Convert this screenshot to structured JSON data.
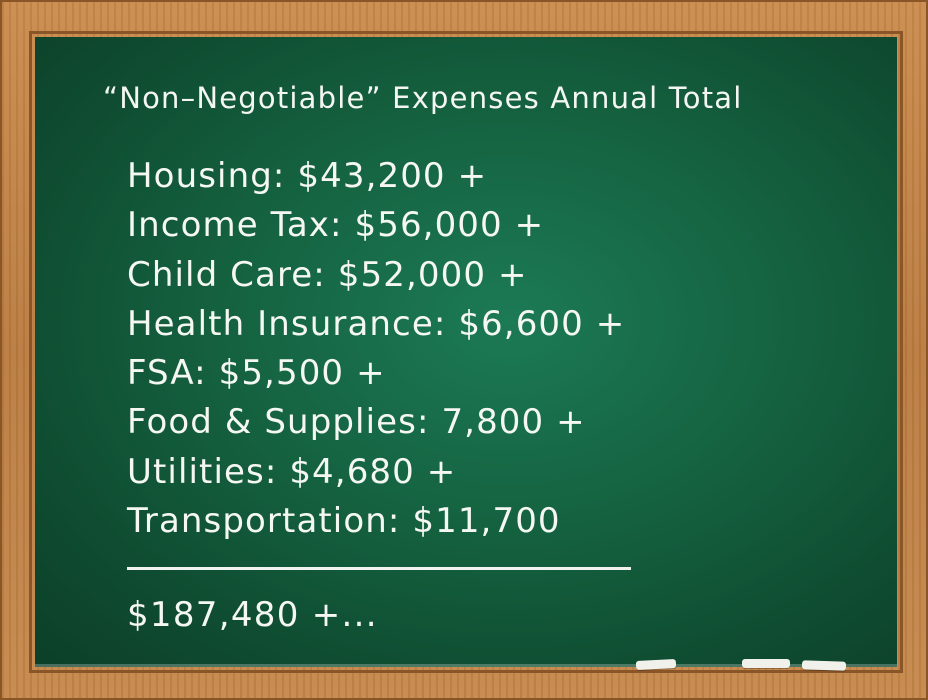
{
  "title": "“Non–Negotiable” Expenses Annual Total",
  "expenses": [
    "Housing: $43,200 +",
    "Income Tax: $56,000 +",
    "Child Care: $52,000 +",
    "Health Insurance: $6,600 +",
    "FSA: $5,500 +",
    "Food & Supplies: 7,800 +",
    "Utilities: $4,680 +",
    "Transportation: $11,700"
  ],
  "total": "$187,480 +...",
  "colors": {
    "board": "#14603f",
    "frame": "#c4874a",
    "chalk": "#f5f7f3"
  }
}
